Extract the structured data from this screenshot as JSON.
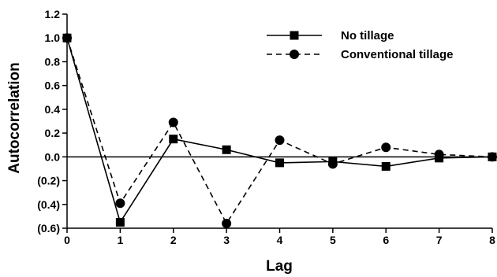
{
  "chart_data": {
    "type": "line",
    "xlabel": "Lag",
    "ylabel": "Autocorrelation",
    "x": [
      0,
      1,
      2,
      3,
      4,
      5,
      6,
      7,
      8
    ],
    "xlim": [
      0,
      8
    ],
    "ylim": [
      -0.6,
      1.2
    ],
    "x_ticks": [
      "0",
      "1",
      "2",
      "3",
      "4",
      "5",
      "6",
      "7",
      "8"
    ],
    "y_ticks": [
      {
        "value": 1.2,
        "label": "1.2"
      },
      {
        "value": 1.0,
        "label": "1.0"
      },
      {
        "value": 0.8,
        "label": "0.8"
      },
      {
        "value": 0.6,
        "label": "0.6"
      },
      {
        "value": 0.4,
        "label": "0.4"
      },
      {
        "value": 0.2,
        "label": "0.2"
      },
      {
        "value": 0.0,
        "label": "0.0"
      },
      {
        "value": -0.2,
        "label": "(0.2)"
      },
      {
        "value": -0.4,
        "label": "(0.4)"
      },
      {
        "value": -0.6,
        "label": "(0.6)"
      }
    ],
    "grid": false,
    "zero_line": true,
    "legend_position": "top-right",
    "series": [
      {
        "name": "No tillage",
        "line_style": "solid",
        "marker": "square",
        "color": "#000000",
        "values": [
          1.0,
          -0.55,
          0.15,
          0.06,
          -0.05,
          -0.04,
          -0.08,
          -0.01,
          0.0
        ]
      },
      {
        "name": "Conventional tillage",
        "line_style": "dashed",
        "marker": "circle",
        "color": "#000000",
        "values": [
          1.0,
          -0.39,
          0.29,
          -0.56,
          0.14,
          -0.06,
          0.08,
          0.02,
          0.0
        ]
      }
    ]
  }
}
